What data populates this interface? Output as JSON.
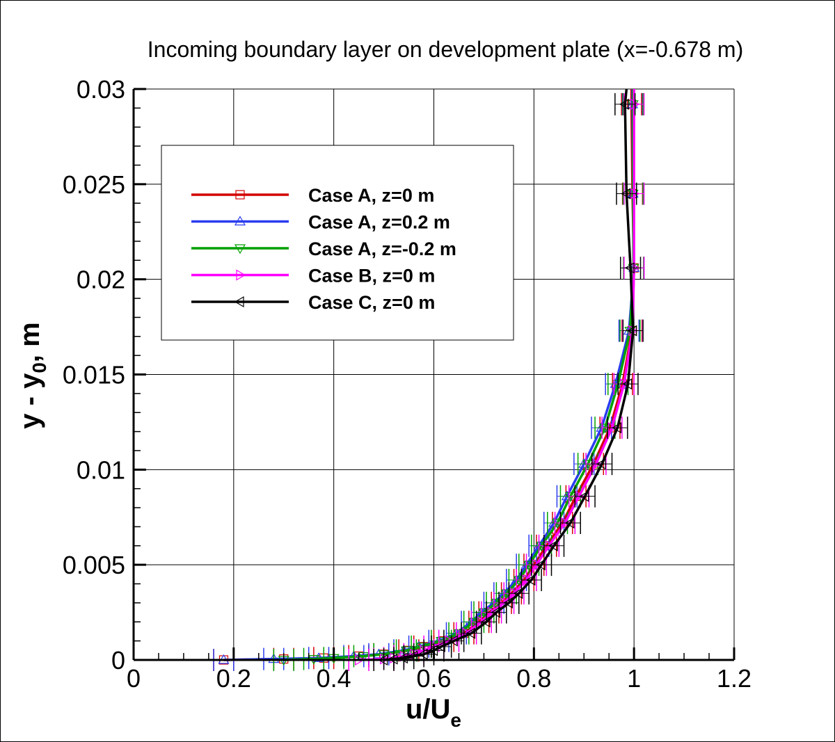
{
  "chart_data": {
    "type": "line",
    "title": "Incoming boundary layer on development plate (x=-0.678 m)",
    "xlabel": {
      "main": "u/U",
      "sub": "e"
    },
    "ylabel": {
      "main": "y - y",
      "sub": "0",
      "tail": ", m"
    },
    "xlim": [
      0,
      1.2
    ],
    "ylim": [
      0,
      0.03
    ],
    "xticks": [
      "0",
      "0.2",
      "0.4",
      "0.6",
      "0.8",
      "1",
      "1.2"
    ],
    "yticks": [
      "0",
      "0.005",
      "0.01",
      "0.015",
      "0.02",
      "0.025",
      "0.03"
    ],
    "grid": true,
    "legend_placement": "upper-left",
    "error_bar_x": 0.02,
    "y": [
      0,
      5e-05,
      0.0001,
      0.0002,
      0.0003,
      0.0005,
      0.0007,
      0.001,
      0.0014,
      0.002,
      0.0025,
      0.003,
      0.0035,
      0.0042,
      0.005,
      0.006,
      0.0072,
      0.0086,
      0.0103,
      0.0122,
      0.0145,
      0.0173,
      0.0206,
      0.0245,
      0.0292,
      0.03
    ],
    "series": [
      {
        "name": "Case A, z=0 m",
        "color": "#d40000",
        "marker": "square",
        "x": [
          0.18,
          0.3,
          0.38,
          0.45,
          0.5,
          0.55,
          0.58,
          0.62,
          0.66,
          0.69,
          0.71,
          0.735,
          0.755,
          0.78,
          0.8,
          0.825,
          0.857,
          0.884,
          0.919,
          0.952,
          0.977,
          0.996,
          1.0,
          0.997,
          0.995,
          0.995
        ]
      },
      {
        "name": "Case A, z=0.2 m",
        "color": "#2a3cf0",
        "marker": "triangle-up",
        "x": [
          0.18,
          0.28,
          0.37,
          0.44,
          0.49,
          0.54,
          0.57,
          0.61,
          0.645,
          0.675,
          0.695,
          0.72,
          0.74,
          0.765,
          0.785,
          0.81,
          0.84,
          0.866,
          0.9,
          0.935,
          0.963,
          0.99,
          1.0,
          0.998,
          0.997,
          0.997
        ]
      },
      {
        "name": "Case A, z=-0.2 m",
        "color": "#00a000",
        "marker": "triangle-down",
        "x": [
          0.3,
          0.36,
          0.4,
          0.46,
          0.5,
          0.545,
          0.575,
          0.615,
          0.65,
          0.68,
          0.7,
          0.725,
          0.745,
          0.77,
          0.79,
          0.815,
          0.847,
          0.873,
          0.908,
          0.942,
          0.968,
          0.992,
          0.999,
          0.998,
          0.998,
          0.998
        ]
      },
      {
        "name": "Case B, z=0 m",
        "color": "#ff00ff",
        "marker": "triangle-right",
        "x": [
          0.45,
          0.5,
          0.52,
          0.54,
          0.56,
          0.58,
          0.6,
          0.63,
          0.665,
          0.695,
          0.715,
          0.74,
          0.76,
          0.785,
          0.805,
          0.83,
          0.862,
          0.89,
          0.924,
          0.956,
          0.98,
          0.997,
          1.0,
          1.0,
          1.0,
          1.0
        ]
      },
      {
        "name": "Case C, z=0 m",
        "color": "#000000",
        "marker": "triangle-left",
        "x": [
          0.5,
          0.52,
          0.54,
          0.56,
          0.58,
          0.6,
          0.615,
          0.64,
          0.675,
          0.705,
          0.725,
          0.75,
          0.77,
          0.795,
          0.815,
          0.84,
          0.873,
          0.902,
          0.936,
          0.967,
          0.988,
          0.998,
          0.993,
          0.985,
          0.982,
          0.985
        ]
      }
    ]
  }
}
